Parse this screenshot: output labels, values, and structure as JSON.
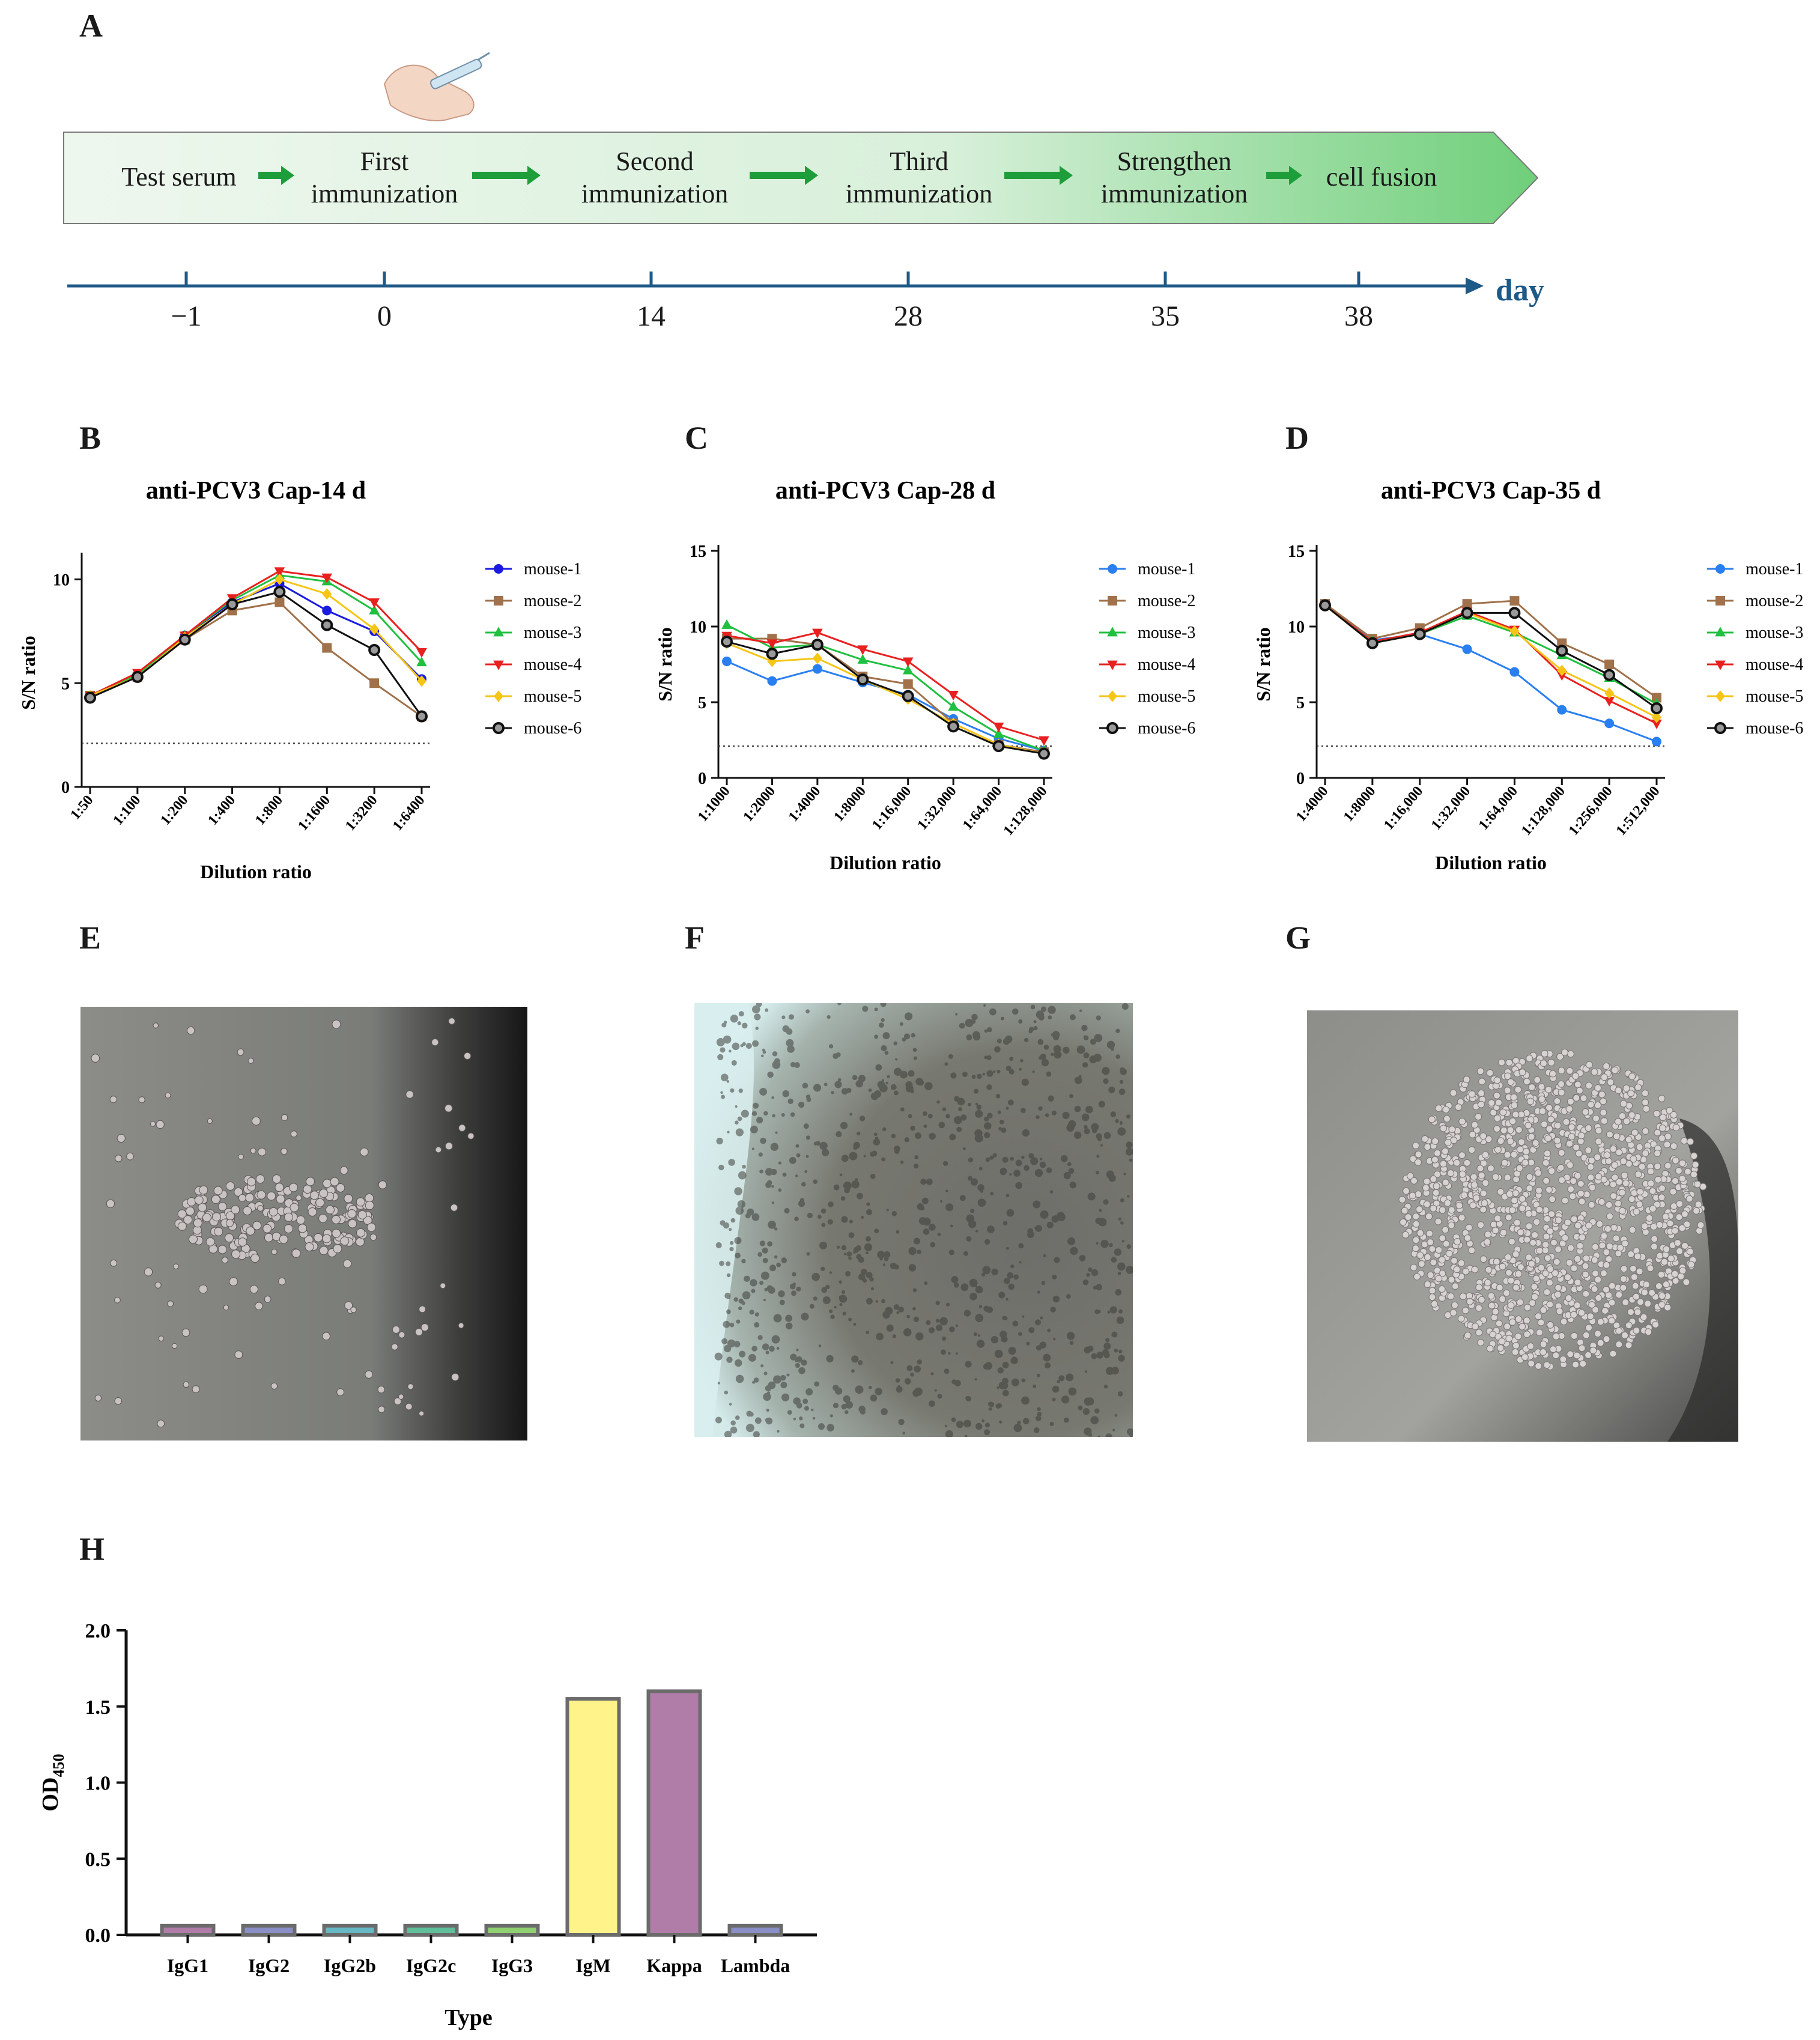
{
  "panel_labels": {
    "A": "A",
    "B": "B",
    "C": "C",
    "D": "D",
    "E": "E",
    "F": "F",
    "G": "G",
    "H": "H"
  },
  "timeline": {
    "steps": [
      "Test serum",
      "First immunization",
      "Second immunization",
      "Third immunization",
      "Strengthen immunization",
      "cell fusion"
    ],
    "step_lines": [
      [
        "Test serum"
      ],
      [
        "First",
        "immunization"
      ],
      [
        "Second",
        "immunization"
      ],
      [
        "Third",
        "immunization"
      ],
      [
        "Strengthen",
        "immunization"
      ],
      [
        "cell fusion"
      ]
    ],
    "days": [
      "−1",
      "0",
      "14",
      "28",
      "35",
      "38"
    ],
    "axis_label": "day",
    "colors": {
      "banner_start": "#eef7ee",
      "banner_end": "#6fcf7a",
      "arrow": "#1e9e3a",
      "axis": "#1d5a87"
    }
  },
  "series_style": [
    {
      "name": "mouse-1",
      "color": "#1a1ae0",
      "color_alt": "#2a7ff0",
      "marker": "circle"
    },
    {
      "name": "mouse-2",
      "color": "#a0714a",
      "marker": "square"
    },
    {
      "name": "mouse-3",
      "color": "#20c040",
      "marker": "triangle-up"
    },
    {
      "name": "mouse-4",
      "color": "#e82020",
      "marker": "triangle-down"
    },
    {
      "name": "mouse-5",
      "color": "#f5c518",
      "marker": "diamond"
    },
    {
      "name": "mouse-6",
      "color": "#111111",
      "marker": "open-circle"
    }
  ],
  "chart_data": [
    {
      "panel": "B",
      "type": "line",
      "title": "anti-PCV3 Cap-14 d",
      "xlabel": "Dilution ratio",
      "ylabel": "S/N ratio",
      "categories": [
        "1:50",
        "1:100",
        "1:200",
        "1:400",
        "1:800",
        "1:1600",
        "1:3200",
        "1:6400"
      ],
      "ylim": [
        0,
        11
      ],
      "yticks": [
        0,
        5,
        10
      ],
      "cutoff": 2.1,
      "grid": false,
      "legend": "right",
      "series": [
        {
          "name": "mouse-1",
          "values": [
            4.4,
            5.4,
            7.3,
            8.9,
            9.8,
            8.5,
            7.5,
            5.2
          ]
        },
        {
          "name": "mouse-2",
          "values": [
            4.4,
            5.3,
            7.1,
            8.5,
            8.9,
            6.7,
            5.0,
            3.4
          ]
        },
        {
          "name": "mouse-3",
          "values": [
            4.4,
            5.4,
            7.3,
            9.0,
            10.2,
            9.9,
            8.5,
            6.0
          ]
        },
        {
          "name": "mouse-4",
          "values": [
            4.4,
            5.5,
            7.3,
            9.1,
            10.4,
            10.1,
            8.9,
            6.5
          ]
        },
        {
          "name": "mouse-5",
          "values": [
            4.4,
            5.3,
            7.2,
            8.8,
            10.0,
            9.3,
            7.6,
            5.1
          ]
        },
        {
          "name": "mouse-6",
          "values": [
            4.3,
            5.3,
            7.1,
            8.8,
            9.4,
            7.8,
            6.6,
            3.4
          ]
        }
      ]
    },
    {
      "panel": "C",
      "type": "line",
      "title": "anti-PCV3 Cap-28 d",
      "xlabel": "Dilution ratio",
      "ylabel": "S/N ratio",
      "categories": [
        "1:1000",
        "1:2000",
        "1:4000",
        "1:8000",
        "1:16,000",
        "1:32,000",
        "1:64,000",
        "1:128,000"
      ],
      "ylim": [
        0,
        15
      ],
      "yticks": [
        0,
        5,
        10,
        15
      ],
      "cutoff": 2.1,
      "grid": false,
      "legend": "right",
      "series": [
        {
          "name": "mouse-1",
          "values": [
            7.7,
            6.4,
            7.2,
            6.3,
            5.5,
            3.9,
            2.6,
            1.8
          ]
        },
        {
          "name": "mouse-2",
          "values": [
            9.2,
            9.2,
            8.8,
            6.7,
            6.2,
            3.6,
            2.2,
            1.7
          ]
        },
        {
          "name": "mouse-3",
          "values": [
            10.1,
            8.6,
            8.8,
            7.8,
            7.1,
            4.7,
            2.9,
            1.8
          ]
        },
        {
          "name": "mouse-4",
          "values": [
            9.4,
            8.9,
            9.6,
            8.5,
            7.7,
            5.5,
            3.4,
            2.5
          ]
        },
        {
          "name": "mouse-5",
          "values": [
            8.9,
            7.7,
            7.9,
            6.5,
            5.2,
            3.6,
            2.2,
            1.6
          ]
        },
        {
          "name": "mouse-6",
          "values": [
            9.0,
            8.2,
            8.8,
            6.5,
            5.4,
            3.4,
            2.1,
            1.6
          ]
        }
      ]
    },
    {
      "panel": "D",
      "type": "line",
      "title": "anti-PCV3 Cap-35 d",
      "xlabel": "Dilution ratio",
      "ylabel": "S/N ratio",
      "categories": [
        "1:4000",
        "1:8000",
        "1:16,000",
        "1:32,000",
        "1:64,000",
        "1:128,000",
        "1:256,000",
        "1:512,000"
      ],
      "ylim": [
        0,
        15
      ],
      "yticks": [
        0,
        5,
        10,
        15
      ],
      "cutoff": 2.1,
      "grid": false,
      "legend": "right",
      "series": [
        {
          "name": "mouse-1",
          "values": [
            11.5,
            9.1,
            9.5,
            8.5,
            7.0,
            4.5,
            3.6,
            2.4
          ]
        },
        {
          "name": "mouse-2",
          "values": [
            11.5,
            9.2,
            9.9,
            11.5,
            11.7,
            8.9,
            7.5,
            5.3
          ]
        },
        {
          "name": "mouse-3",
          "values": [
            11.4,
            9.0,
            9.5,
            10.7,
            9.6,
            8.1,
            6.6,
            4.9
          ]
        },
        {
          "name": "mouse-4",
          "values": [
            11.4,
            9.0,
            9.6,
            11.0,
            9.8,
            6.8,
            5.1,
            3.6
          ]
        },
        {
          "name": "mouse-5",
          "values": [
            11.4,
            8.9,
            9.5,
            10.9,
            9.7,
            7.1,
            5.6,
            4.0
          ]
        },
        {
          "name": "mouse-6",
          "values": [
            11.4,
            8.9,
            9.5,
            10.9,
            10.9,
            8.4,
            6.8,
            4.6
          ]
        }
      ]
    },
    {
      "panel": "H",
      "type": "bar",
      "title": "",
      "xlabel": "Type",
      "ylabel": "OD450",
      "ylabel_main": "OD",
      "ylabel_sub": "450",
      "categories": [
        "IgG1",
        "IgG2",
        "IgG2b",
        "IgG2c",
        "IgG3",
        "IgM",
        "Kappa",
        "Lambda"
      ],
      "values": [
        0.06,
        0.06,
        0.06,
        0.06,
        0.06,
        1.55,
        1.6,
        0.06
      ],
      "ylim": [
        0,
        2.0
      ],
      "yticks": [
        0.0,
        0.5,
        1.0,
        1.5,
        2.0
      ],
      "ytick_labels": [
        "0.0",
        "0.5",
        "1.0",
        "1.5",
        "2.0"
      ],
      "bar_colors": [
        "#b07ca8",
        "#8a8fc8",
        "#66b8c4",
        "#5fbf9a",
        "#8fd070",
        "#fff38a",
        "#b07ca8",
        "#8a8fc8"
      ],
      "grid": false
    }
  ]
}
